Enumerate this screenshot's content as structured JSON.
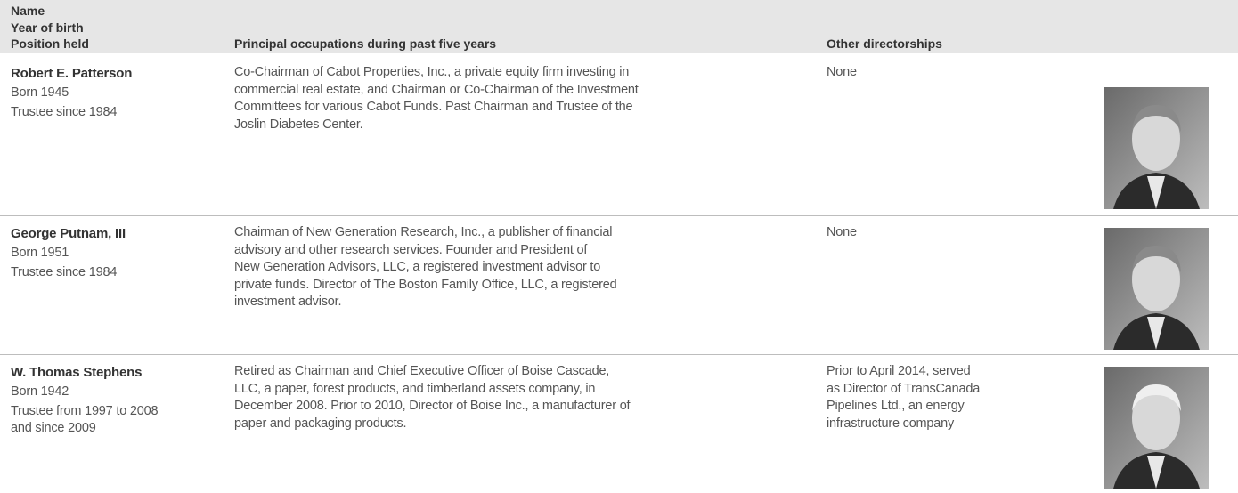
{
  "header": {
    "name_lines": [
      "Name",
      "Year of birth",
      "Position held"
    ],
    "occupations": "Principal occupations during past five years",
    "directorships": "Other directorships"
  },
  "rows": [
    {
      "name": "Robert E. Patterson",
      "born": "Born 1945",
      "position": [
        "Trustee since 1984"
      ],
      "occupations": [
        "Co-Chairman of Cabot Properties, Inc., a private equity firm investing in",
        "commercial real estate, and Chairman or Co-Chairman of the Investment",
        "Committees for various Cabot Funds. Past Chairman and Trustee of the",
        "Joslin Diabetes Center."
      ],
      "directorships": [
        "None"
      ]
    },
    {
      "name": "George Putnam, III",
      "born": "Born 1951",
      "position": [
        "Trustee since 1984"
      ],
      "occupations": [
        "Chairman of New Generation Research, Inc., a publisher of financial",
        "advisory and other research services. Founder and President of",
        "New Generation Advisors, LLC, a registered investment advisor to",
        "private funds. Director of The Boston Family Office, LLC, a registered",
        "investment advisor."
      ],
      "directorships": [
        "None"
      ]
    },
    {
      "name": "W. Thomas Stephens",
      "born": "Born 1942",
      "position": [
        "Trustee from 1997 to 2008",
        "and since 2009"
      ],
      "occupations": [
        "Retired as Chairman and Chief Executive Officer of Boise Cascade,",
        "LLC, a paper, forest products, and timberland assets company, in",
        "December 2008. Prior to 2010, Director of Boise Inc., a manufacturer of",
        "paper and packaging products."
      ],
      "directorships": [
        "Prior to April 2014, served",
        "as Director of TransCanada",
        "Pipelines Ltd., an energy",
        "infrastructure company"
      ]
    }
  ]
}
